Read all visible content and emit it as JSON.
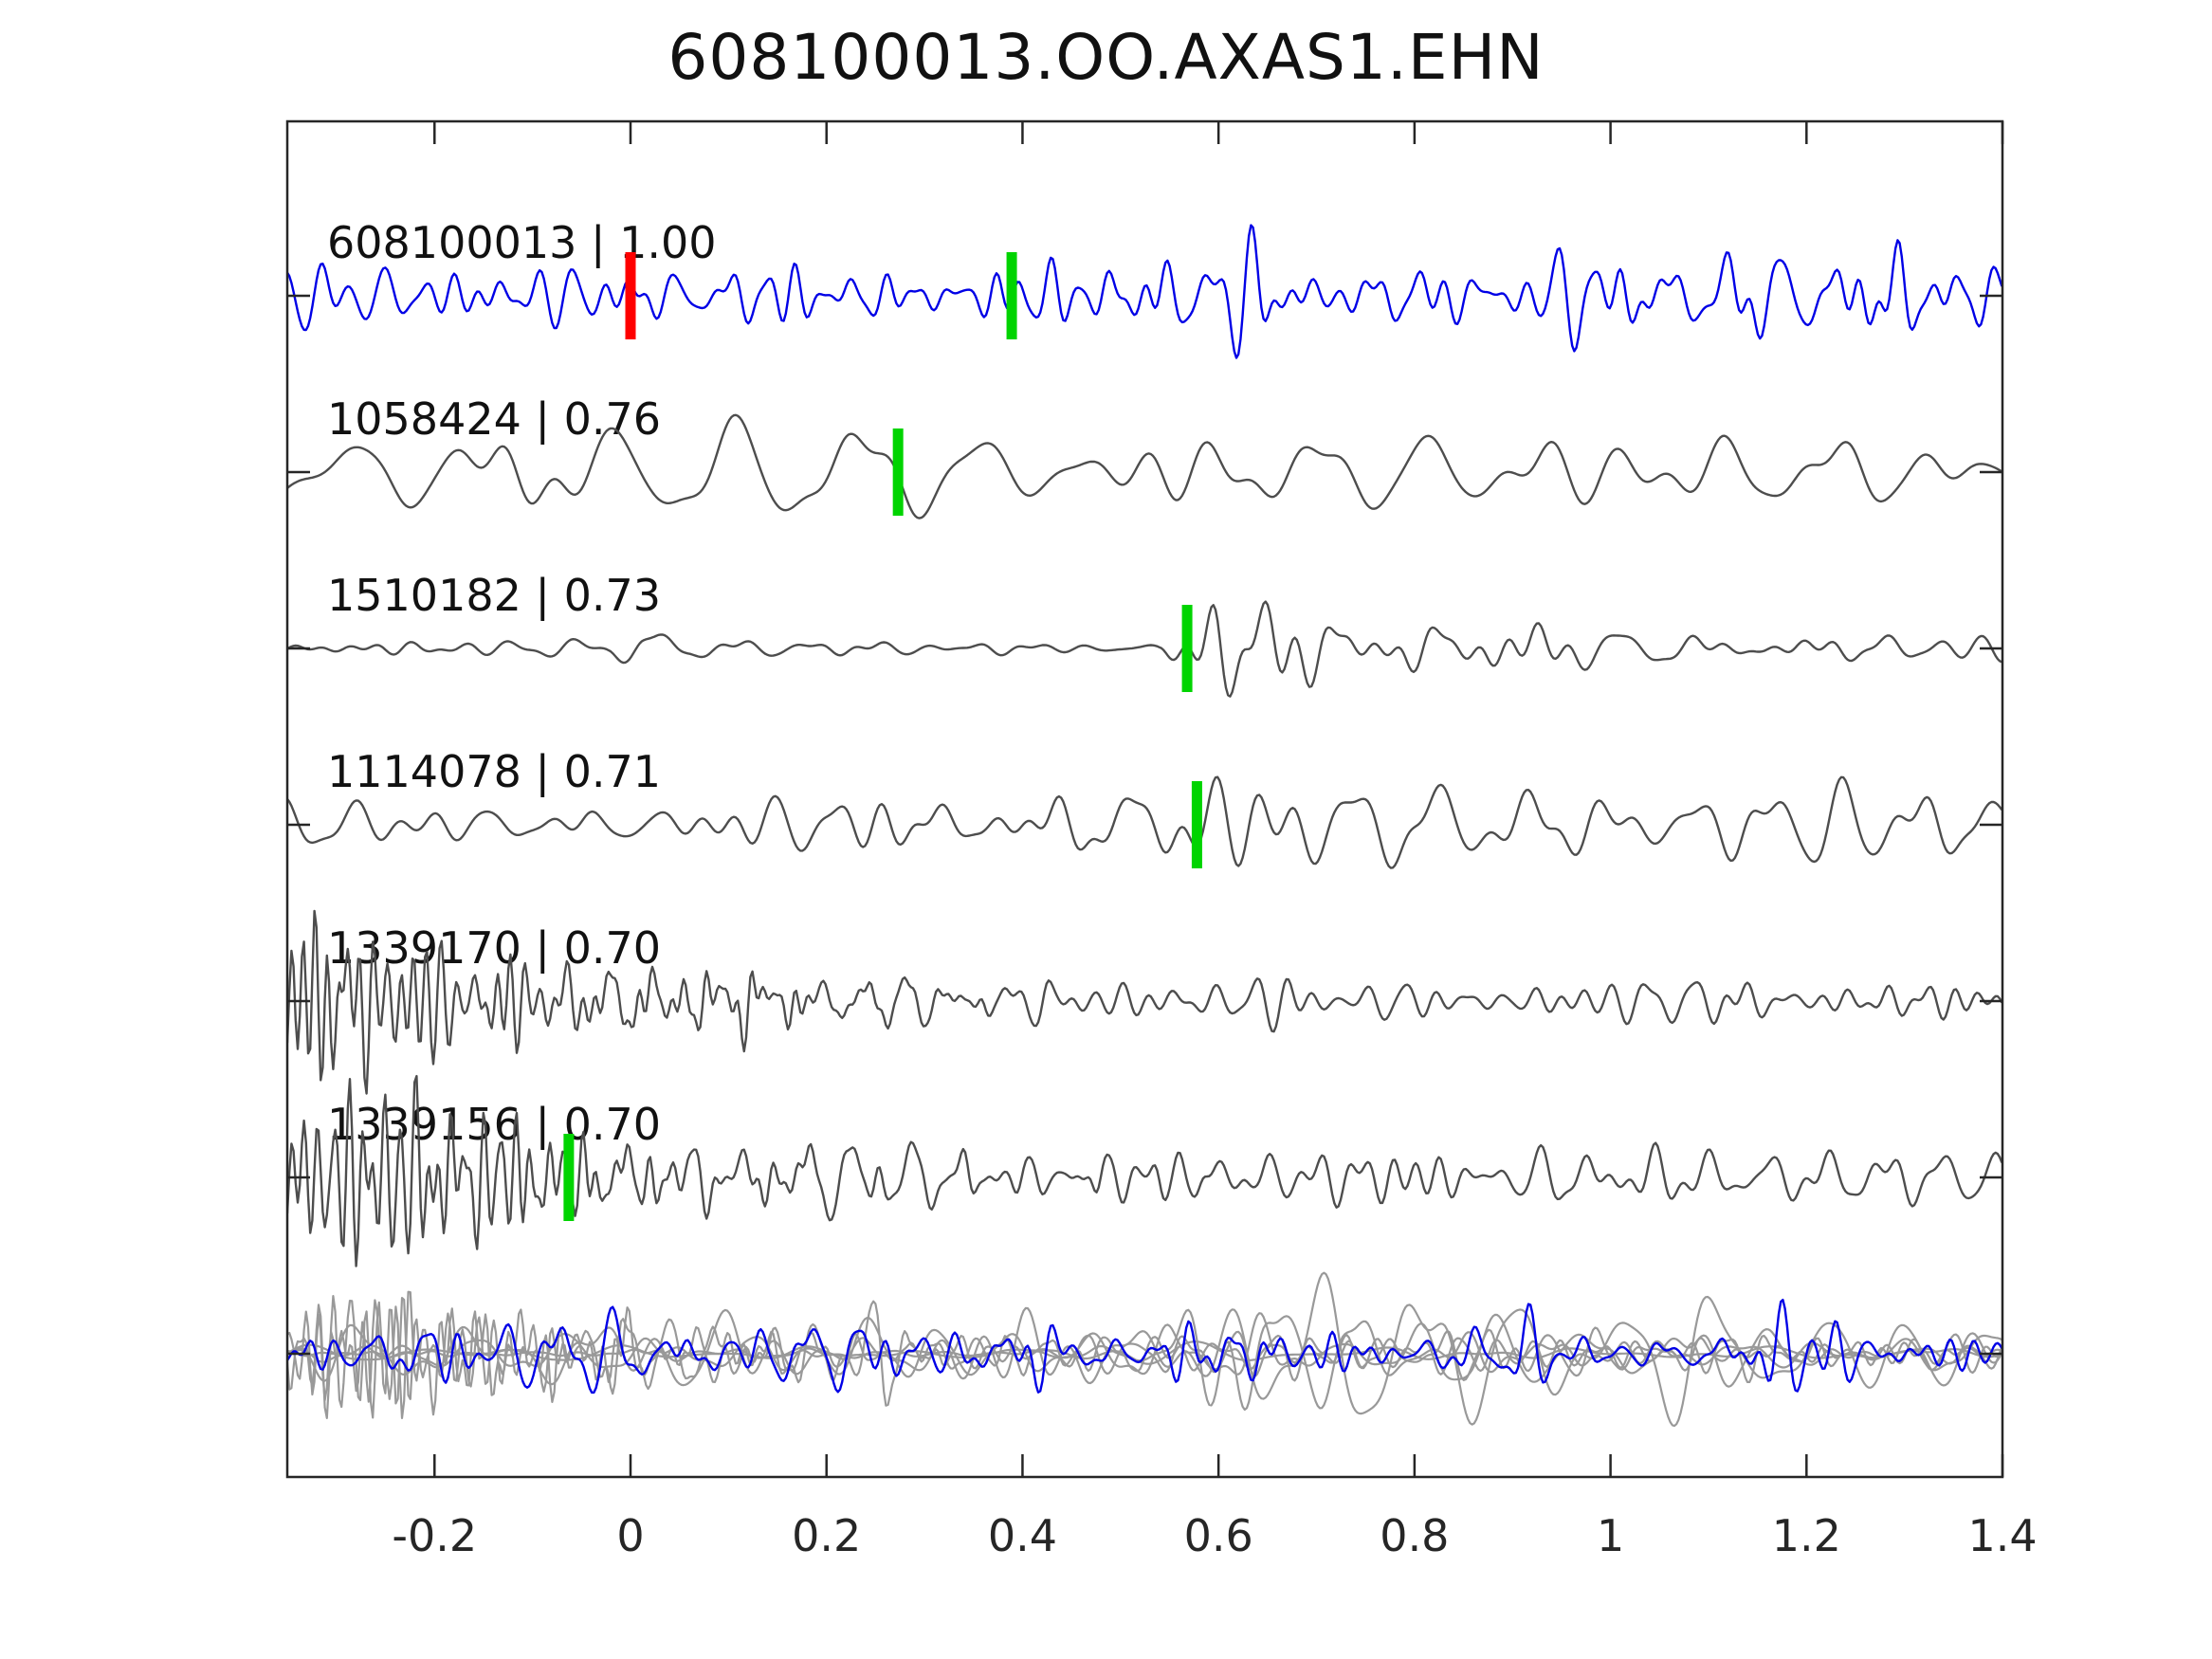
{
  "title": "608100013.OO.AXAS1.EHN",
  "colors": {
    "template_trace": "#0000e6",
    "candidate_trace": "#4d4d4d",
    "overlay_trace": "#999999",
    "pick_marker_green": "#00d400",
    "pick_marker_red": "#ff0000",
    "axis": "#262626",
    "text": "#111111"
  },
  "axis": {
    "xlim": [
      -0.35,
      1.4
    ],
    "xticks": [
      -0.2,
      0,
      0.2,
      0.4,
      0.6,
      0.8,
      1,
      1.2,
      1.4
    ],
    "xtick_labels": [
      "-0.2",
      "0",
      "0.2",
      "0.4",
      "0.6",
      "0.8",
      "1",
      "1.2",
      "1.4"
    ],
    "grid": false,
    "ylabel": "",
    "xlabel": ""
  },
  "chart_data": {
    "type": "line",
    "title": "608100013.OO.AXAS1.EHN",
    "xlim": [
      -0.35,
      1.4
    ],
    "xticks": [
      -0.2,
      0,
      0.2,
      0.4,
      0.6,
      0.8,
      1,
      1.2,
      1.4
    ],
    "traces": [
      {
        "id": "608100013",
        "correlation": "1.00",
        "label": "608100013 | 1.00",
        "row": 0,
        "color_role": "template_trace",
        "markers": [
          {
            "x": 0.0,
            "color_role": "pick_marker_red",
            "name": "pick-marker-red"
          },
          {
            "x": 0.389,
            "color_role": "pick_marker_green",
            "name": "pick-marker-green"
          }
        ],
        "seed": 11,
        "band": [
          15,
          55
        ],
        "envelope": [
          [
            -0.35,
            42
          ],
          [
            0.35,
            44
          ],
          [
            0.42,
            58
          ],
          [
            0.5,
            40
          ],
          [
            0.6,
            48
          ],
          [
            0.64,
            72
          ],
          [
            0.7,
            42
          ],
          [
            1.0,
            42
          ],
          [
            1.4,
            46
          ]
        ]
      },
      {
        "id": "1058424",
        "correlation": "0.76",
        "label": "1058424 | 0.76",
        "row": 1,
        "color_role": "candidate_trace",
        "markers": [
          {
            "x": 0.273,
            "color_role": "pick_marker_green",
            "name": "pick-marker-green"
          }
        ],
        "seed": 22,
        "band": [
          7,
          26
        ],
        "envelope": [
          [
            -0.35,
            38
          ],
          [
            0.05,
            48
          ],
          [
            0.22,
            66
          ],
          [
            0.32,
            78
          ],
          [
            0.45,
            62
          ],
          [
            0.62,
            76
          ],
          [
            0.8,
            55
          ],
          [
            1.1,
            48
          ],
          [
            1.4,
            44
          ]
        ]
      },
      {
        "id": "1510182",
        "correlation": "0.73",
        "label": "1510182 | 0.73",
        "row": 2,
        "color_role": "candidate_trace",
        "markers": [
          {
            "x": 0.568,
            "color_role": "pick_marker_green",
            "name": "pick-marker-green"
          }
        ],
        "seed": 33,
        "band": [
          10,
          38
        ],
        "envelope": [
          [
            -0.35,
            7
          ],
          [
            -0.02,
            8
          ],
          [
            0.01,
            26
          ],
          [
            0.06,
            14
          ],
          [
            0.3,
            7
          ],
          [
            0.54,
            9
          ],
          [
            0.6,
            120
          ],
          [
            0.68,
            60
          ],
          [
            0.82,
            34
          ],
          [
            1.1,
            20
          ],
          [
            1.4,
            15
          ]
        ]
      },
      {
        "id": "1114078",
        "correlation": "0.71",
        "label": "1114078 | 0.71",
        "row": 3,
        "color_role": "candidate_trace",
        "markers": [
          {
            "x": 0.578,
            "color_role": "pick_marker_green",
            "name": "pick-marker-green"
          }
        ],
        "seed": 44,
        "band": [
          9,
          34
        ],
        "envelope": [
          [
            -0.35,
            26
          ],
          [
            0.2,
            30
          ],
          [
            0.45,
            42
          ],
          [
            0.56,
            58
          ],
          [
            0.63,
            88
          ],
          [
            0.72,
            48
          ],
          [
            0.95,
            40
          ],
          [
            1.2,
            38
          ],
          [
            1.4,
            34
          ]
        ]
      },
      {
        "id": "1339170",
        "correlation": "0.70",
        "label": "1339170 | 0.70",
        "row": 4,
        "color_role": "candidate_trace",
        "markers": [],
        "seed": 55,
        "band": [
          16,
          48
        ],
        "envelope": [
          [
            -0.35,
            25
          ],
          [
            0.0,
            40
          ],
          [
            0.3,
            36
          ],
          [
            0.6,
            28
          ],
          [
            0.9,
            32
          ],
          [
            1.2,
            34
          ],
          [
            1.4,
            30
          ]
        ],
        "ring_band": [
          55,
          90
        ],
        "ring_envelope": [
          [
            -0.35,
            55
          ],
          [
            -0.3,
            88
          ],
          [
            -0.22,
            78
          ],
          [
            -0.12,
            48
          ],
          [
            0.0,
            22
          ],
          [
            0.2,
            8
          ],
          [
            0.5,
            0
          ],
          [
            1.4,
            0
          ]
        ]
      },
      {
        "id": "1339156",
        "correlation": "0.70",
        "label": "1339156 | 0.70",
        "row": 5,
        "color_role": "candidate_trace",
        "markers": [
          {
            "x": -0.063,
            "color_role": "pick_marker_green",
            "name": "pick-marker-green"
          }
        ],
        "seed": 66,
        "band": [
          16,
          48
        ],
        "envelope": [
          [
            -0.35,
            25
          ],
          [
            0.0,
            42
          ],
          [
            0.25,
            40
          ],
          [
            0.5,
            32
          ],
          [
            0.8,
            30
          ],
          [
            1.1,
            34
          ],
          [
            1.4,
            30
          ]
        ],
        "ring_band": [
          55,
          90
        ],
        "ring_envelope": [
          [
            -0.35,
            50
          ],
          [
            -0.28,
            85
          ],
          [
            -0.18,
            70
          ],
          [
            -0.06,
            40
          ],
          [
            0.1,
            15
          ],
          [
            0.35,
            5
          ],
          [
            0.7,
            0
          ],
          [
            1.4,
            0
          ]
        ]
      }
    ],
    "overlay_row": {
      "row": 6,
      "description": "all candidate traces overlaid in gray with template trace in blue",
      "gray_members": [
        "1058424",
        "1510182",
        "1114078",
        "1339170",
        "1339156"
      ],
      "blue_member": "608100013",
      "scale": 0.8,
      "extra_flat_trace": {
        "seed": 77,
        "band": [
          5,
          20
        ],
        "envelope": [
          [
            -0.35,
            8
          ],
          [
            1.4,
            8
          ]
        ]
      }
    }
  }
}
